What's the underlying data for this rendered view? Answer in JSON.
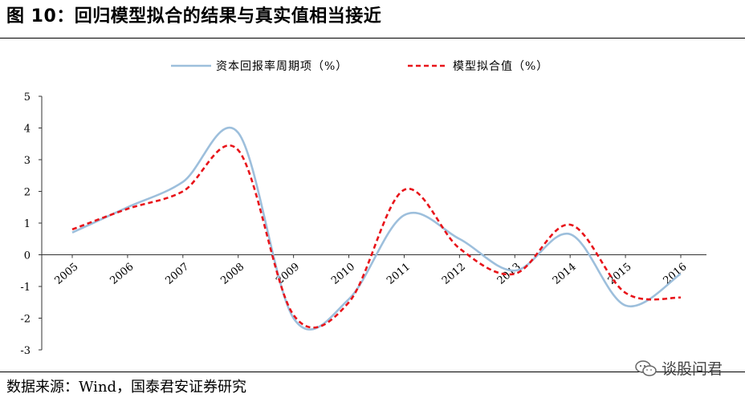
{
  "header": {
    "title": "图 10：回归模型拟合的结果与真实值相当接近"
  },
  "footer": {
    "source": "数据来源：Wind，国泰君安证券研究",
    "watermark": "谈股问君",
    "watermark_icon": "wechat-icon"
  },
  "chart_data": {
    "type": "line",
    "title": "",
    "xlabel": "",
    "ylabel": "",
    "categories": [
      "2005",
      "2006",
      "2007",
      "2008",
      "2009",
      "2010",
      "2011",
      "2012",
      "2013",
      "2014",
      "2015",
      "2016"
    ],
    "ylim": [
      -3,
      5
    ],
    "yticks": [
      5,
      4,
      3,
      2,
      1,
      0,
      -1,
      -2,
      -3
    ],
    "grid": false,
    "legend_position": "top",
    "series": [
      {
        "name": "资本回报率周期项（%）",
        "style": "solid",
        "color": "#9dbfdc",
        "values": [
          0.7,
          1.5,
          2.3,
          3.85,
          -2.0,
          -1.4,
          1.25,
          0.5,
          -0.5,
          0.65,
          -1.6,
          -0.6
        ]
      },
      {
        "name": "模型拟合值（%）",
        "style": "dashed",
        "color": "#e8141a",
        "values": [
          0.8,
          1.45,
          2.0,
          3.3,
          -1.9,
          -1.5,
          2.05,
          0.2,
          -0.6,
          0.95,
          -1.2,
          -1.35
        ]
      }
    ]
  }
}
